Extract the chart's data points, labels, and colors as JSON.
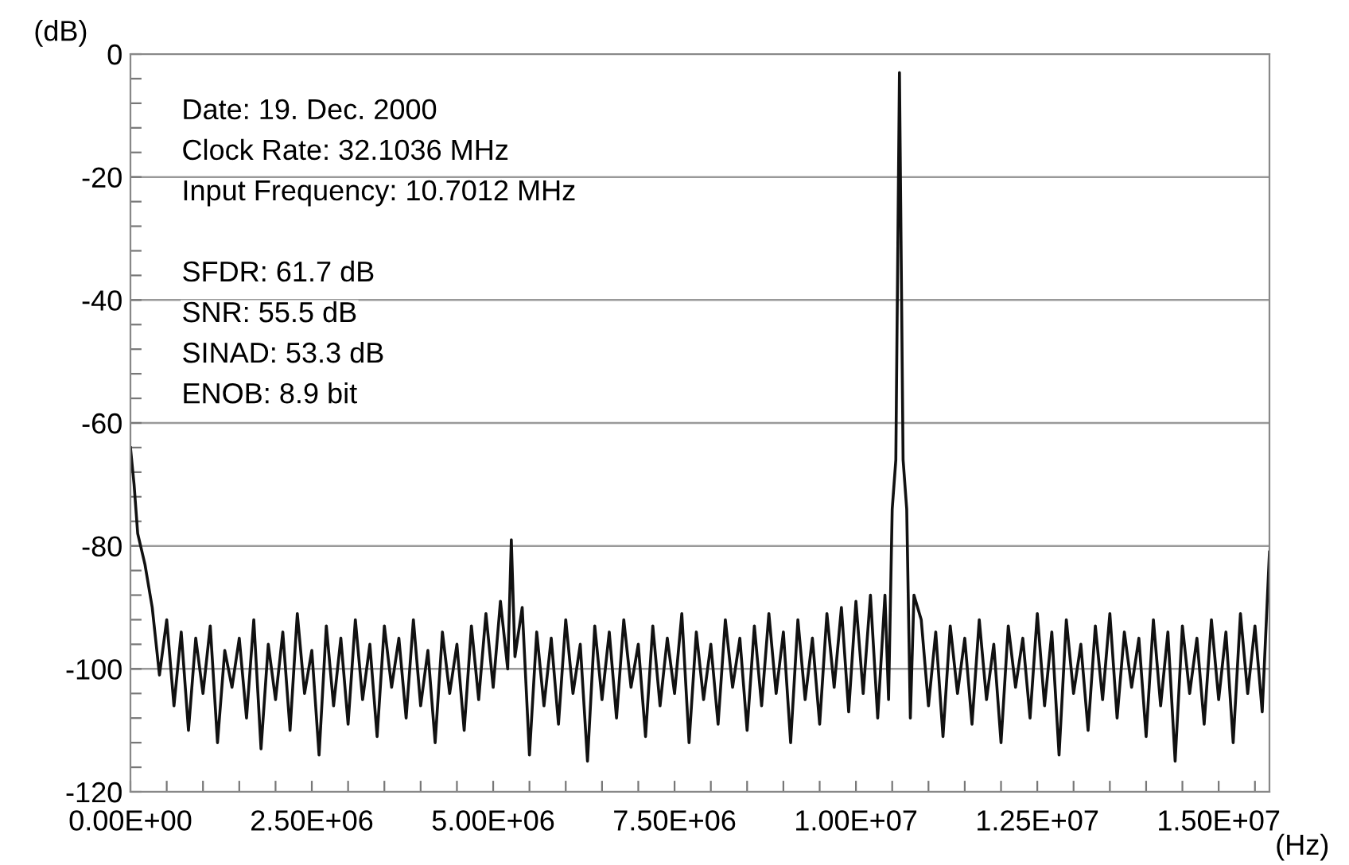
{
  "chart_data": {
    "type": "line",
    "xlabel": "(Hz)",
    "ylabel": "(dB)",
    "annotations": [
      "Date: 19. Dec. 2000",
      "Clock Rate: 32.1036 MHz",
      "Input Frequency: 10.7012 MHz",
      "SFDR: 61.7 dB",
      "SNR: 55.5 dB",
      "SINAD: 53.3 dB",
      "ENOB: 8.9 bit"
    ],
    "xlim": [
      0,
      15700000
    ],
    "ylim": [
      -120,
      0
    ],
    "xticks": [
      {
        "value": 0,
        "label": "0.00E+00"
      },
      {
        "value": 500000,
        "label": null
      },
      {
        "value": 1000000,
        "label": null
      },
      {
        "value": 1500000,
        "label": null
      },
      {
        "value": 2000000,
        "label": null
      },
      {
        "value": 2500000,
        "label": "2.50E+06"
      },
      {
        "value": 3000000,
        "label": null
      },
      {
        "value": 3500000,
        "label": null
      },
      {
        "value": 4000000,
        "label": null
      },
      {
        "value": 4500000,
        "label": null
      },
      {
        "value": 5000000,
        "label": "5.00E+06"
      },
      {
        "value": 5500000,
        "label": null
      },
      {
        "value": 6000000,
        "label": null
      },
      {
        "value": 6500000,
        "label": null
      },
      {
        "value": 7000000,
        "label": null
      },
      {
        "value": 7500000,
        "label": "7.50E+06"
      },
      {
        "value": 8000000,
        "label": null
      },
      {
        "value": 8500000,
        "label": null
      },
      {
        "value": 9000000,
        "label": null
      },
      {
        "value": 9500000,
        "label": null
      },
      {
        "value": 10000000,
        "label": "1.00E+07"
      },
      {
        "value": 10500000,
        "label": null
      },
      {
        "value": 11000000,
        "label": null
      },
      {
        "value": 11500000,
        "label": null
      },
      {
        "value": 12000000,
        "label": null
      },
      {
        "value": 12500000,
        "label": "1.25E+07"
      },
      {
        "value": 13000000,
        "label": null
      },
      {
        "value": 13500000,
        "label": null
      },
      {
        "value": 14000000,
        "label": null
      },
      {
        "value": 14500000,
        "label": null
      },
      {
        "value": 15000000,
        "label": "1.50E+07"
      },
      {
        "value": 15500000,
        "label": null
      }
    ],
    "yticks": [
      0,
      {
        "value": -4,
        "label": null
      },
      {
        "value": -8,
        "label": null
      },
      {
        "value": -12,
        "label": null
      },
      {
        "value": -16,
        "label": null
      },
      -20,
      {
        "value": -24,
        "label": null
      },
      {
        "value": -28,
        "label": null
      },
      {
        "value": -32,
        "label": null
      },
      {
        "value": -36,
        "label": null
      },
      -40,
      {
        "value": -44,
        "label": null
      },
      {
        "value": -48,
        "label": null
      },
      {
        "value": -52,
        "label": null
      },
      {
        "value": -56,
        "label": null
      },
      -60,
      {
        "value": -64,
        "label": null
      },
      {
        "value": -68,
        "label": null
      },
      {
        "value": -72,
        "label": null
      },
      {
        "value": -76,
        "label": null
      },
      -80,
      {
        "value": -84,
        "label": null
      },
      {
        "value": -88,
        "label": null
      },
      {
        "value": -92,
        "label": null
      },
      {
        "value": -96,
        "label": null
      },
      -100,
      {
        "value": -104,
        "label": null
      },
      {
        "value": -108,
        "label": null
      },
      {
        "value": -112,
        "label": null
      },
      {
        "value": -116,
        "label": null
      },
      -120
    ],
    "grid": "y",
    "marker": "none",
    "line_style": "solid",
    "series": [
      {
        "color": "#111111",
        "x": [
          0,
          50000,
          100000,
          200000,
          300000,
          400000,
          500000,
          600000,
          700000,
          800000,
          900000,
          1000000,
          1100000,
          1200000,
          1300000,
          1400000,
          1500000,
          1600000,
          1700000,
          1800000,
          1900000,
          2000000,
          2100000,
          2200000,
          2300000,
          2400000,
          2500000,
          2600000,
          2700000,
          2800000,
          2900000,
          3000000,
          3100000,
          3200000,
          3300000,
          3400000,
          3500000,
          3600000,
          3700000,
          3800000,
          3900000,
          4000000,
          4100000,
          4200000,
          4300000,
          4400000,
          4500000,
          4600000,
          4700000,
          4800000,
          4900000,
          5000000,
          5100000,
          5200000,
          5250000,
          5300000,
          5400000,
          5500000,
          5600000,
          5700000,
          5800000,
          5900000,
          6000000,
          6100000,
          6200000,
          6300000,
          6400000,
          6500000,
          6600000,
          6700000,
          6800000,
          6900000,
          7000000,
          7100000,
          7200000,
          7300000,
          7400000,
          7500000,
          7600000,
          7700000,
          7800000,
          7900000,
          8000000,
          8100000,
          8200000,
          8300000,
          8400000,
          8500000,
          8600000,
          8700000,
          8800000,
          8900000,
          9000000,
          9100000,
          9200000,
          9300000,
          9400000,
          9500000,
          9600000,
          9700000,
          9800000,
          9900000,
          10000000,
          10100000,
          10200000,
          10300000,
          10400000,
          10450000,
          10500000,
          10550000,
          10600000,
          10650000,
          10700000,
          10750000,
          10800000,
          10900000,
          11000000,
          11100000,
          11200000,
          11300000,
          11400000,
          11500000,
          11600000,
          11700000,
          11800000,
          11900000,
          12000000,
          12100000,
          12200000,
          12300000,
          12400000,
          12500000,
          12600000,
          12700000,
          12800000,
          12900000,
          13000000,
          13100000,
          13200000,
          13300000,
          13400000,
          13500000,
          13600000,
          13700000,
          13800000,
          13900000,
          14000000,
          14100000,
          14200000,
          14300000,
          14400000,
          14500000,
          14600000,
          14700000,
          14800000,
          14900000,
          15000000,
          15100000,
          15200000,
          15300000,
          15400000,
          15500000,
          15600000,
          15700000
        ],
        "values": [
          -64,
          -70,
          -78,
          -83,
          -90,
          -101,
          -92,
          -106,
          -94,
          -110,
          -95,
          -104,
          -93,
          -112,
          -97,
          -103,
          -95,
          -108,
          -92,
          -113,
          -96,
          -105,
          -94,
          -110,
          -91,
          -104,
          -97,
          -114,
          -93,
          -106,
          -95,
          -109,
          -92,
          -105,
          -96,
          -111,
          -93,
          -103,
          -95,
          -108,
          -92,
          -106,
          -97,
          -112,
          -94,
          -104,
          -96,
          -110,
          -93,
          -105,
          -91,
          -103,
          -89,
          -100,
          -79,
          -98,
          -90,
          -114,
          -94,
          -106,
          -95,
          -109,
          -92,
          -104,
          -96,
          -115,
          -93,
          -105,
          -94,
          -108,
          -92,
          -103,
          -96,
          -111,
          -93,
          -106,
          -95,
          -104,
          -91,
          -112,
          -94,
          -105,
          -96,
          -109,
          -92,
          -103,
          -95,
          -110,
          -93,
          -106,
          -91,
          -104,
          -94,
          -112,
          -92,
          -105,
          -95,
          -109,
          -91,
          -103,
          -90,
          -107,
          -89,
          -104,
          -88,
          -108,
          -88,
          -105,
          -74,
          -66,
          -3,
          -66,
          -74,
          -108,
          -88,
          -92,
          -106,
          -94,
          -111,
          -93,
          -104,
          -95,
          -109,
          -92,
          -105,
          -96,
          -112,
          -93,
          -103,
          -95,
          -108,
          -91,
          -106,
          -94,
          -114,
          -92,
          -104,
          -96,
          -110,
          -93,
          -105,
          -91,
          -108,
          -94,
          -103,
          -95,
          -111,
          -92,
          -106,
          -94,
          -115,
          -93,
          -104,
          -95,
          -109,
          -92,
          -105,
          -94,
          -112,
          -91,
          -104,
          -93,
          -107,
          -81
        ]
      }
    ]
  }
}
